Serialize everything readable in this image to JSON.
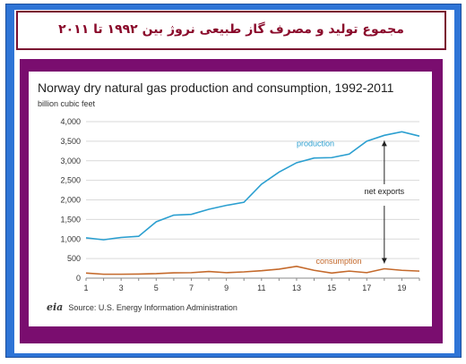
{
  "header": {
    "title": "مجموع تولید و مصرف گاز طبیعی نروژ بین ۱۹۹۲ تا ۲۰۱۱"
  },
  "source": {
    "logo_text": "eia",
    "text": "Source: U.S. Energy Information Administration"
  },
  "colors": {
    "frame_blue": "#2e74d6",
    "header_border": "#7a1130",
    "header_text": "#8a0a2b",
    "panel_purple": "#7a0d6f",
    "production": "#2b9fd0",
    "consumption": "#c4692b",
    "grid": "#d9d9d9"
  },
  "chart_data": {
    "type": "line",
    "title": "Norway dry natural gas production and consumption, 1992-2011",
    "ylabel": "billion cubic feet",
    "xlabel": "",
    "x": [
      1,
      2,
      3,
      4,
      5,
      6,
      7,
      8,
      9,
      10,
      11,
      12,
      13,
      14,
      15,
      16,
      17,
      18,
      19,
      20
    ],
    "xlim": [
      1,
      20
    ],
    "x_tick_labels": [
      "1",
      "3",
      "5",
      "7",
      "9",
      "11",
      "13",
      "15",
      "17",
      "19"
    ],
    "x_tick_values": [
      1,
      3,
      5,
      7,
      9,
      11,
      13,
      15,
      17,
      19
    ],
    "ylim": [
      0,
      4000
    ],
    "y_tick_values": [
      0,
      500,
      1000,
      1500,
      2000,
      2500,
      3000,
      3500,
      4000
    ],
    "y_tick_labels": [
      "0",
      "500",
      "1,000",
      "1,500",
      "2,000",
      "2,500",
      "3,000",
      "3,500",
      "4,000"
    ],
    "grid": true,
    "series": [
      {
        "name": "production",
        "values": [
          1030,
          980,
          1040,
          1070,
          1440,
          1610,
          1630,
          1760,
          1860,
          1940,
          2400,
          2710,
          2950,
          3070,
          3080,
          3170,
          3500,
          3650,
          3740,
          3630
        ]
      },
      {
        "name": "consumption",
        "values": [
          130,
          100,
          100,
          105,
          115,
          135,
          140,
          170,
          140,
          160,
          190,
          230,
          300,
          200,
          130,
          180,
          140,
          240,
          200,
          180
        ]
      }
    ],
    "annotations": [
      {
        "text": "net exports"
      }
    ]
  }
}
